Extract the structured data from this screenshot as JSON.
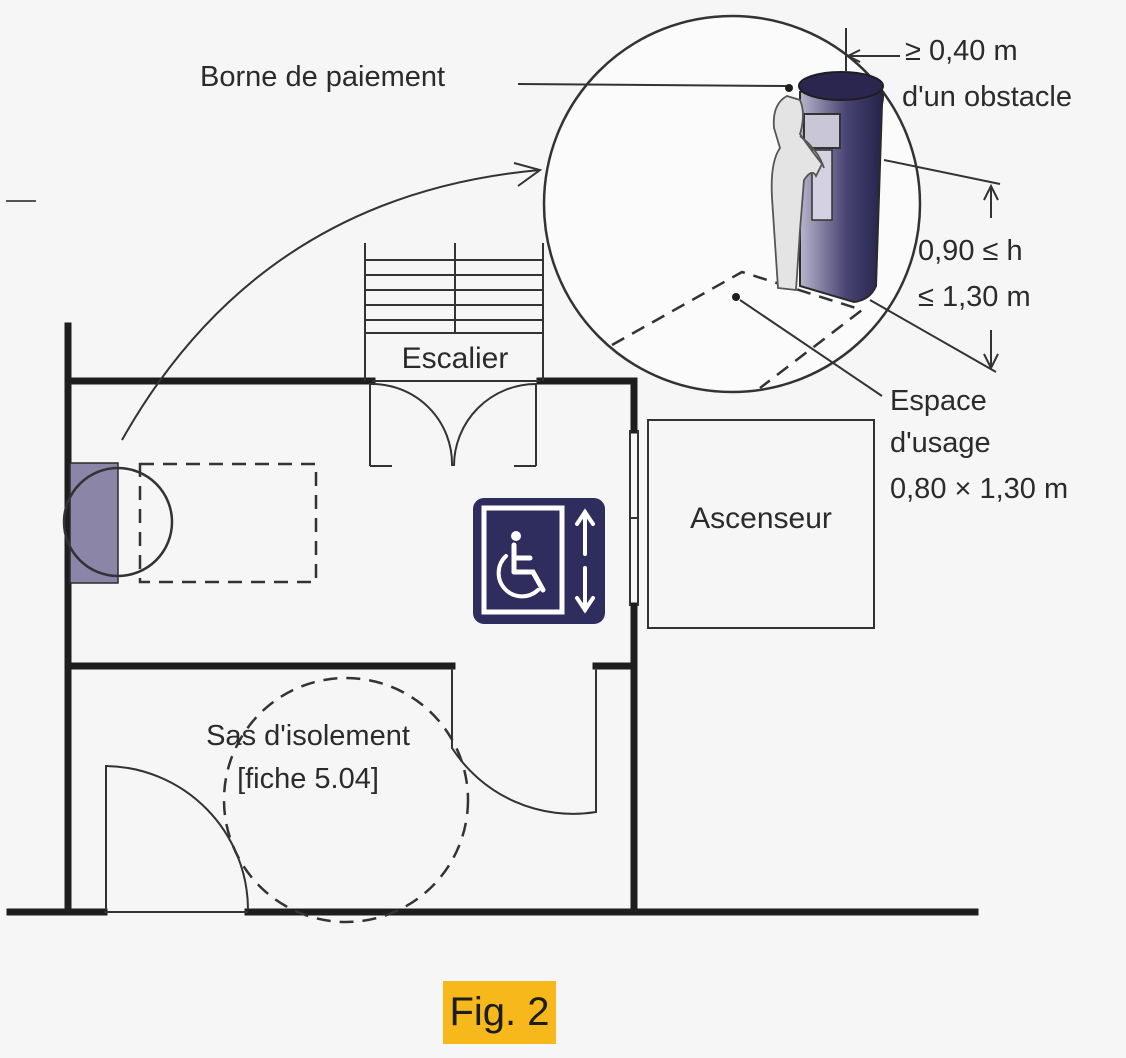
{
  "labels": {
    "payment_terminal": "Borne de paiement",
    "clearance_line1": "≥ 0,40 m",
    "clearance_line2": "d'un obstacle",
    "height_line1": "0,90 ≤ h",
    "height_line2": "≤ 1,30 m",
    "use_space_line1": "Espace",
    "use_space_line2": "d'usage",
    "use_space_line3": "0,80 × 1,30 m",
    "stairs": "Escalier",
    "elevator": "Ascenseur",
    "airlock_line1": "Sas d'isolement",
    "airlock_line2": "[fiche 5.04]"
  },
  "caption": "Fig. 2",
  "colors": {
    "terminal": "#3a3560",
    "terminal_swatch": "#8b86a8",
    "sign_background": "#2f2c5e",
    "caption_highlight": "#f7b81b"
  },
  "icons": [
    "wheelchair-icon",
    "up-arrow-icon",
    "down-arrow-icon"
  ]
}
